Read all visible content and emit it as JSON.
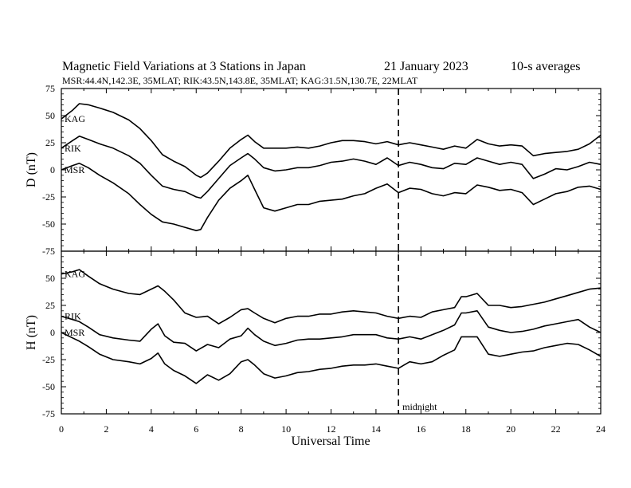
{
  "chart_data": {
    "type": "line",
    "title": "Magnetic Field Variations at 3 Stations in Japan",
    "date": "21 January 2023",
    "averaging": "10-s averages",
    "stations_line": "MSR:44.4N,142.3E, 35MLAT;  RIK:43.5N,143.8E, 35MLAT;  KAG:31.5N,130.7E, 22MLAT",
    "xlabel": "Universal Time",
    "xlim": [
      0,
      24
    ],
    "xticks": [
      "0",
      "2",
      "4",
      "6",
      "8",
      "10",
      "12",
      "14",
      "16",
      "18",
      "20",
      "22",
      "24"
    ],
    "marker": {
      "x": 15,
      "label": "midnight"
    },
    "panels": [
      {
        "ylabel": "D (nT)",
        "ylim": [
          -75,
          75
        ],
        "yticks": [
          "75",
          "50",
          "25",
          "0",
          "-25",
          "-50",
          "-75"
        ],
        "series": [
          {
            "name": "KAG",
            "x": [
              0,
              0.5,
              0.8,
              1.2,
              1.7,
              2.3,
              3,
              3.5,
              4,
              4.5,
              5,
              5.5,
              6,
              6.2,
              6.5,
              7,
              7.5,
              8,
              8.3,
              8.6,
              9,
              9.5,
              10,
              10.5,
              11,
              11.5,
              12,
              12.5,
              13,
              13.5,
              14,
              14.5,
              15,
              15.5,
              16,
              16.5,
              17,
              17.5,
              18,
              18.5,
              19,
              19.5,
              20,
              20.5,
              21,
              21.5,
              22,
              22.5,
              23,
              23.5,
              24
            ],
            "y": [
              47,
              55,
              61,
              60,
              57,
              53,
              46,
              38,
              27,
              14,
              8,
              3,
              -5,
              -7,
              -3,
              8,
              20,
              28,
              32,
              26,
              20,
              20,
              20,
              21,
              20,
              22,
              25,
              27,
              27,
              26,
              24,
              26,
              23,
              25,
              23,
              21,
              19,
              22,
              20,
              28,
              24,
              22,
              23,
              22,
              13,
              15,
              16,
              17,
              19,
              24,
              32
            ]
          },
          {
            "name": "RIK",
            "x": [
              0,
              0.5,
              0.8,
              1.2,
              1.7,
              2.3,
              3,
              3.5,
              4,
              4.5,
              5,
              5.5,
              6,
              6.2,
              6.5,
              7,
              7.5,
              8,
              8.3,
              8.6,
              9,
              9.5,
              10,
              10.5,
              11,
              11.5,
              12,
              12.5,
              13,
              13.5,
              14,
              14.5,
              15,
              15.5,
              16,
              16.5,
              17,
              17.5,
              18,
              18.5,
              19,
              19.5,
              20,
              20.5,
              21,
              21.5,
              22,
              22.5,
              23,
              23.5,
              24
            ],
            "y": [
              20,
              27,
              31,
              28,
              24,
              20,
              13,
              6,
              -5,
              -15,
              -18,
              -20,
              -25,
              -26,
              -20,
              -8,
              4,
              11,
              15,
              10,
              2,
              -1,
              0,
              2,
              2,
              4,
              7,
              8,
              10,
              8,
              5,
              11,
              4,
              7,
              5,
              2,
              1,
              6,
              5,
              11,
              8,
              5,
              7,
              5,
              -8,
              -4,
              1,
              0,
              3,
              7,
              5
            ]
          },
          {
            "name": "MSR",
            "x": [
              0,
              0.5,
              0.8,
              1.2,
              1.7,
              2.3,
              3,
              3.5,
              4,
              4.5,
              5,
              5.5,
              6,
              6.2,
              6.5,
              7,
              7.5,
              8,
              8.3,
              8.6,
              9,
              9.5,
              10,
              10.5,
              11,
              11.5,
              12,
              12.5,
              13,
              13.5,
              14,
              14.5,
              15,
              15.5,
              16,
              16.5,
              17,
              17.5,
              18,
              18.5,
              19,
              19.5,
              20,
              20.5,
              21,
              21.5,
              22,
              22.5,
              23,
              23.5,
              24
            ],
            "y": [
              0,
              4,
              6,
              2,
              -5,
              -12,
              -22,
              -32,
              -41,
              -48,
              -50,
              -53,
              -56,
              -55,
              -44,
              -28,
              -17,
              -10,
              -5,
              -18,
              -35,
              -38,
              -35,
              -32,
              -32,
              -29,
              -28,
              -27,
              -24,
              -22,
              -17,
              -13,
              -21,
              -17,
              -18,
              -22,
              -24,
              -21,
              -22,
              -14,
              -16,
              -19,
              -18,
              -21,
              -32,
              -27,
              -22,
              -20,
              -16,
              -15,
              -18
            ]
          }
        ]
      },
      {
        "ylabel": "H (nT)",
        "ylim": [
          -75,
          75
        ],
        "yticks": [
          "75",
          "50",
          "25",
          "0",
          "-25",
          "-50",
          "-75"
        ],
        "series": [
          {
            "name": "KAG",
            "x": [
              0,
              0.5,
              0.8,
              1.2,
              1.7,
              2.3,
              3,
              3.5,
              4,
              4.3,
              4.6,
              5,
              5.5,
              6,
              6.5,
              7,
              7.5,
              8,
              8.3,
              8.6,
              9,
              9.5,
              10,
              10.5,
              11,
              11.5,
              12,
              12.5,
              13,
              13.5,
              14,
              14.5,
              15,
              15.5,
              16,
              16.5,
              17,
              17.5,
              17.8,
              18,
              18.5,
              19,
              19.5,
              20,
              20.5,
              21,
              21.5,
              22,
              22.5,
              23,
              23.5,
              24
            ],
            "y": [
              54,
              56,
              58,
              52,
              45,
              40,
              36,
              35,
              40,
              43,
              38,
              30,
              18,
              14,
              15,
              8,
              14,
              21,
              22,
              18,
              13,
              9,
              13,
              15,
              15,
              17,
              17,
              19,
              20,
              19,
              18,
              15,
              13,
              15,
              14,
              19,
              21,
              23,
              33,
              33,
              36,
              25,
              25,
              23,
              24,
              26,
              28,
              31,
              34,
              37,
              40,
              41
            ]
          },
          {
            "name": "RIK",
            "x": [
              0,
              0.5,
              0.8,
              1.2,
              1.7,
              2.3,
              3,
              3.5,
              4,
              4.3,
              4.6,
              5,
              5.5,
              6,
              6.5,
              7,
              7.5,
              8,
              8.3,
              8.6,
              9,
              9.5,
              10,
              10.5,
              11,
              11.5,
              12,
              12.5,
              13,
              13.5,
              14,
              14.5,
              15,
              15.5,
              16,
              16.5,
              17,
              17.5,
              17.8,
              18,
              18.5,
              19,
              19.5,
              20,
              20.5,
              21,
              21.5,
              22,
              22.5,
              23,
              23.5,
              24
            ],
            "y": [
              15,
              12,
              10,
              5,
              -2,
              -5,
              -7,
              -8,
              3,
              8,
              -3,
              -9,
              -10,
              -17,
              -11,
              -14,
              -6,
              -3,
              4,
              -2,
              -8,
              -12,
              -10,
              -7,
              -6,
              -6,
              -5,
              -4,
              -2,
              -2,
              -2,
              -5,
              -6,
              -4,
              -6,
              -2,
              2,
              7,
              18,
              18,
              20,
              5,
              2,
              0,
              1,
              3,
              6,
              8,
              10,
              12,
              5,
              0
            ]
          },
          {
            "name": "MSR",
            "x": [
              0,
              0.5,
              0.8,
              1.2,
              1.7,
              2.3,
              3,
              3.5,
              4,
              4.3,
              4.6,
              5,
              5.5,
              6,
              6.5,
              7,
              7.5,
              8,
              8.3,
              8.6,
              9,
              9.5,
              10,
              10.5,
              11,
              11.5,
              12,
              12.5,
              13,
              13.5,
              14,
              14.5,
              15,
              15.5,
              16,
              16.5,
              17,
              17.5,
              17.8,
              18,
              18.5,
              19,
              19.5,
              20,
              20.5,
              21,
              21.5,
              22,
              22.5,
              23,
              23.5,
              24
            ],
            "y": [
              0,
              -5,
              -8,
              -13,
              -20,
              -25,
              -27,
              -29,
              -24,
              -19,
              -29,
              -35,
              -40,
              -47,
              -39,
              -44,
              -38,
              -27,
              -25,
              -30,
              -38,
              -42,
              -40,
              -37,
              -36,
              -34,
              -33,
              -31,
              -30,
              -30,
              -29,
              -31,
              -33,
              -27,
              -29,
              -27,
              -21,
              -16,
              -4,
              -4,
              -4,
              -20,
              -22,
              -20,
              -18,
              -17,
              -14,
              -12,
              -10,
              -11,
              -16,
              -22
            ]
          }
        ]
      }
    ]
  }
}
